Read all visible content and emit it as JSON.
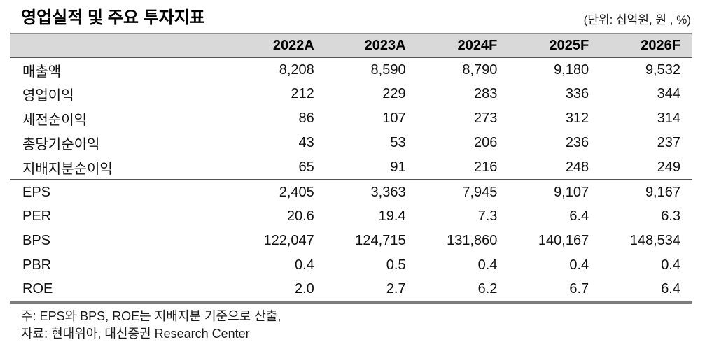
{
  "title": "영업실적 및 주요 투자지표",
  "unit_note": "(단위: 십억원, 원 , %)",
  "table": {
    "columns": [
      "",
      "2022A",
      "2023A",
      "2024F",
      "2025F",
      "2026F"
    ],
    "rows": [
      {
        "label": "매출액",
        "values": [
          "8,208",
          "8,590",
          "8,790",
          "9,180",
          "9,532"
        ]
      },
      {
        "label": "영업이익",
        "values": [
          "212",
          "229",
          "283",
          "336",
          "344"
        ]
      },
      {
        "label": "세전순이익",
        "values": [
          "86",
          "107",
          "273",
          "312",
          "314"
        ]
      },
      {
        "label": "총당기순이익",
        "values": [
          "43",
          "53",
          "206",
          "236",
          "237"
        ]
      },
      {
        "label": "지배지분순이익",
        "values": [
          "65",
          "91",
          "216",
          "248",
          "249"
        ]
      },
      {
        "label": "EPS",
        "values": [
          "2,405",
          "3,363",
          "7,945",
          "9,107",
          "9,167"
        ]
      },
      {
        "label": "PER",
        "values": [
          "20.6",
          "19.4",
          "7.3",
          "6.4",
          "6.3"
        ]
      },
      {
        "label": "BPS",
        "values": [
          "122,047",
          "124,715",
          "131,860",
          "140,167",
          "148,534"
        ]
      },
      {
        "label": "PBR",
        "values": [
          "0.4",
          "0.5",
          "0.4",
          "0.4",
          "0.4"
        ]
      },
      {
        "label": "ROE",
        "values": [
          "2.0",
          "2.7",
          "6.2",
          "6.7",
          "6.4"
        ]
      }
    ],
    "section_break_after_row_index": 4
  },
  "notes": [
    "주: EPS와 BPS, ROE는 지배지분 기준으로 산출,",
    "자료: 현대위아, 대신증권 Research Center"
  ],
  "colors": {
    "header_fill": "#d9d9d9",
    "header_top_border": "#8f8f8f",
    "header_bottom_border": "#555555",
    "section_border": "#555555",
    "table_bottom_border": "#7d7d7d",
    "text": "#111111"
  }
}
